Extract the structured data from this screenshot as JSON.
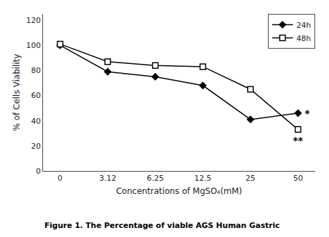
{
  "chart_data": {
    "type": "line",
    "categories": [
      "0",
      "3.12",
      "6.25",
      "12.5",
      "25",
      "50"
    ],
    "series": [
      {
        "name": "24h",
        "color": "black",
        "marker": "diamond",
        "values": [
          100,
          79,
          75,
          68,
          41,
          46
        ]
      },
      {
        "name": "48h",
        "color": "black",
        "marker": "square-open",
        "values": [
          101,
          87,
          84,
          83,
          65,
          33
        ]
      }
    ],
    "xlabel": "Concentrations of MgSO₄(mM)",
    "ylabel": "% of Cells Viability",
    "ylim": [
      0,
      125
    ],
    "yticks": [
      0,
      20,
      40,
      60,
      80,
      100,
      120
    ],
    "grid": false,
    "legend": "upper right",
    "annotations": [
      {
        "text": "*",
        "category": "50",
        "series": "24h"
      },
      {
        "text": "**",
        "category": "50",
        "series": "48h"
      }
    ],
    "caption": "Figure 1. The Percentage of viable AGS Human Gastric"
  }
}
